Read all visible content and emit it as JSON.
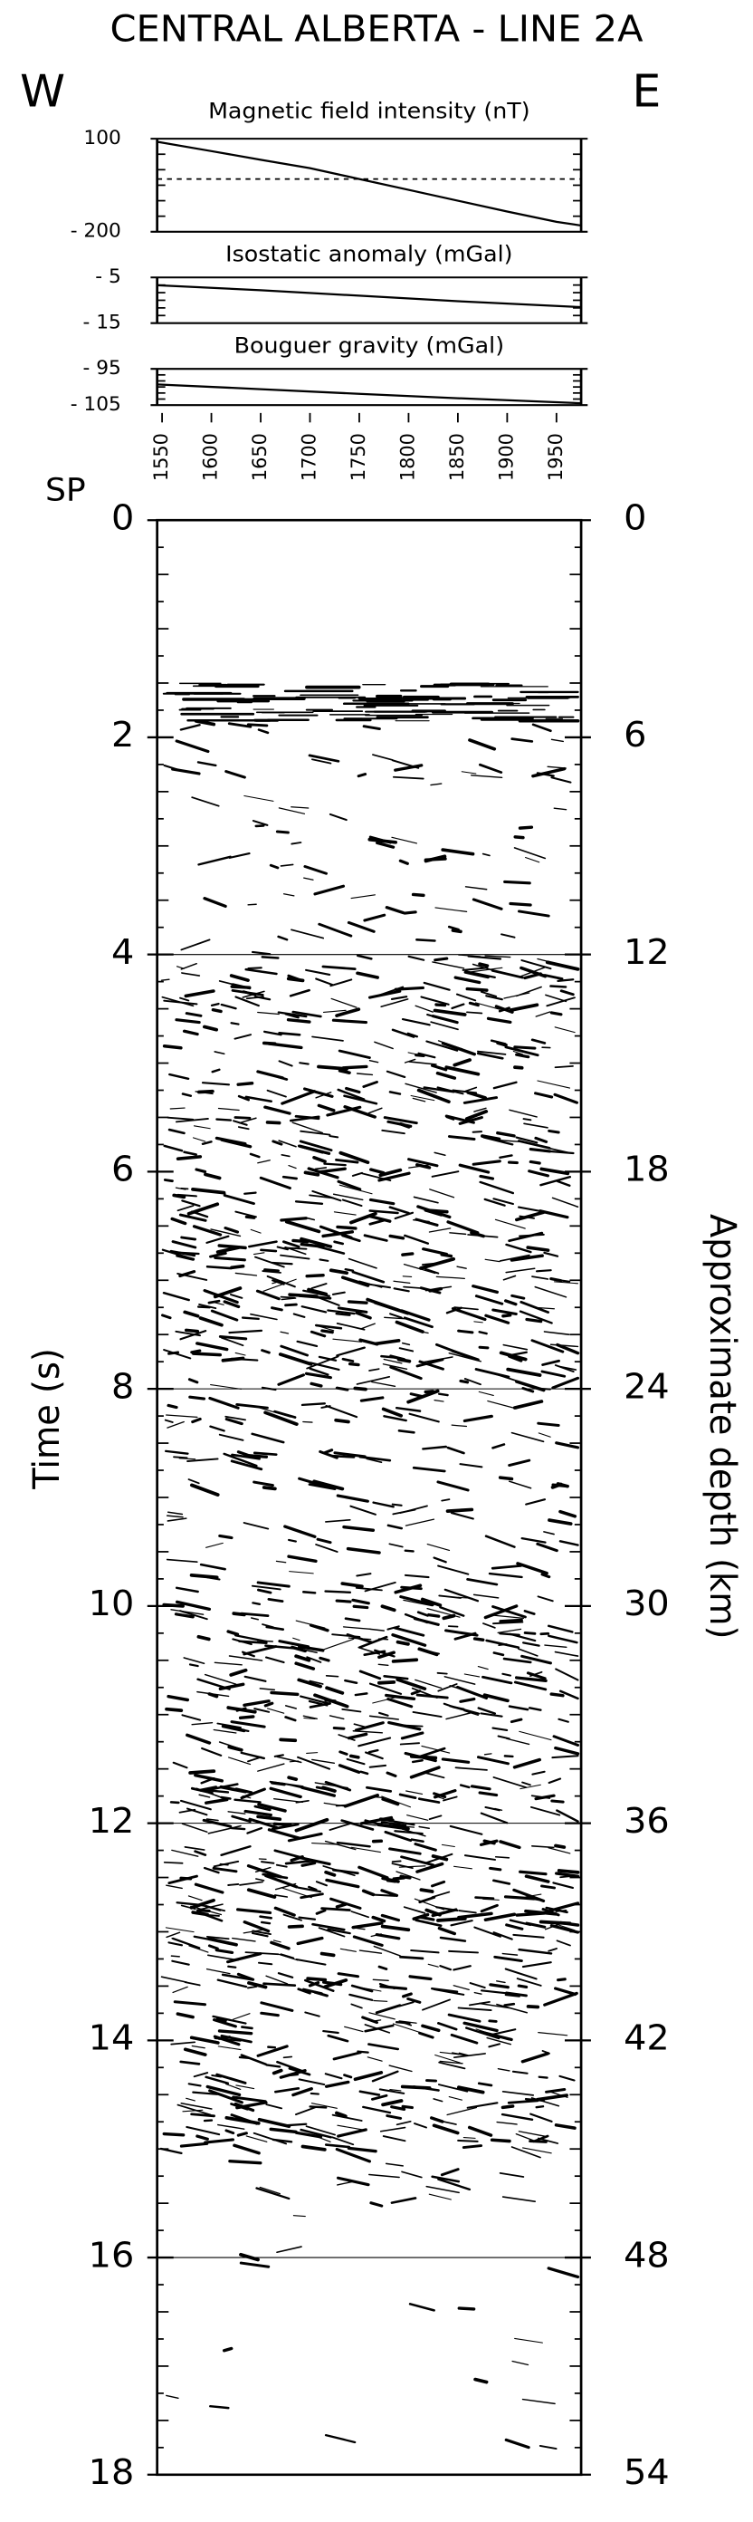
{
  "title": "CENTRAL ALBERTA - LINE 2A",
  "west_label": "W",
  "east_label": "E",
  "chart_data": [
    {
      "type": "line",
      "title": "Magnetic field intensity (nT)",
      "color": "#000000",
      "x": [
        1545,
        1600,
        1650,
        1700,
        1750,
        1800,
        1850,
        1900,
        1950,
        1975
      ],
      "values": [
        90,
        60,
        32,
        5,
        -30,
        -65,
        -100,
        -135,
        -168,
        -180
      ],
      "xlim": [
        1545,
        1975
      ],
      "ylim": [
        -200,
        100
      ],
      "yticks": [
        100,
        {
          "value": -200,
          "label": "- 200"
        }
      ],
      "reference_line": -30
    },
    {
      "type": "line",
      "title": "Isostatic anomaly (mGal)",
      "color": "#000000",
      "x": [
        1545,
        1650,
        1750,
        1850,
        1975
      ],
      "values": [
        -6.7,
        -7.8,
        -9.0,
        -10.2,
        -11.5
      ],
      "xlim": [
        1545,
        1975
      ],
      "ylim": [
        -15,
        -5
      ],
      "yticks": [
        {
          "value": -5,
          "label": "- 5"
        },
        {
          "value": -15,
          "label": "- 15"
        }
      ]
    },
    {
      "type": "line",
      "title": "Bouguer gravity (mGal)",
      "color": "#000000",
      "x": [
        1545,
        1650,
        1750,
        1850,
        1975
      ],
      "values": [
        -99.3,
        -100.6,
        -101.9,
        -103.1,
        -104.5
      ],
      "xlim": [
        1545,
        1975
      ],
      "ylim": [
        -105,
        -95
      ],
      "yticks": [
        {
          "value": -95,
          "label": "- 95"
        },
        {
          "value": -105,
          "label": "- 105"
        }
      ]
    },
    {
      "type": "seismic",
      "x_label": "SP",
      "xlim": [
        1545,
        1975
      ],
      "xticks": [
        1550,
        1600,
        1650,
        1700,
        1750,
        1800,
        1850,
        1900,
        1950
      ],
      "y_label": "Time (s)",
      "ylim": [
        0,
        18
      ],
      "yticks": [
        0,
        2,
        4,
        6,
        8,
        10,
        12,
        14,
        16,
        18
      ],
      "y2_label": "Approximate depth (km)",
      "y2lim": [
        0,
        54
      ],
      "y2ticks": [
        0,
        6,
        12,
        18,
        24,
        30,
        36,
        42,
        48,
        54
      ],
      "grid": [
        4,
        8,
        12,
        16
      ]
    }
  ]
}
